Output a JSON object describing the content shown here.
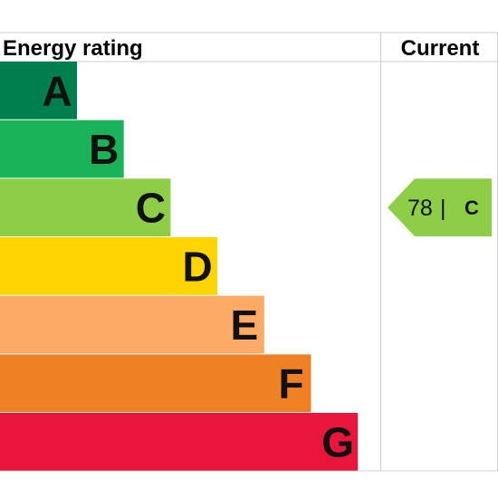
{
  "chart_data": {
    "type": "bar",
    "header": {
      "left": "Energy rating",
      "right": "Current"
    },
    "bands": [
      {
        "letter": "A",
        "color": "#007f4e"
      },
      {
        "letter": "B",
        "color": "#1bb35a"
      },
      {
        "letter": "C",
        "color": "#8dce46"
      },
      {
        "letter": "D",
        "color": "#ffd500"
      },
      {
        "letter": "E",
        "color": "#fcaa65"
      },
      {
        "letter": "F",
        "color": "#ef8023"
      },
      {
        "letter": "G",
        "color": "#e9153b"
      }
    ],
    "current": {
      "value": "78",
      "separator": "|",
      "band": "C",
      "color": "#8dce46"
    }
  }
}
